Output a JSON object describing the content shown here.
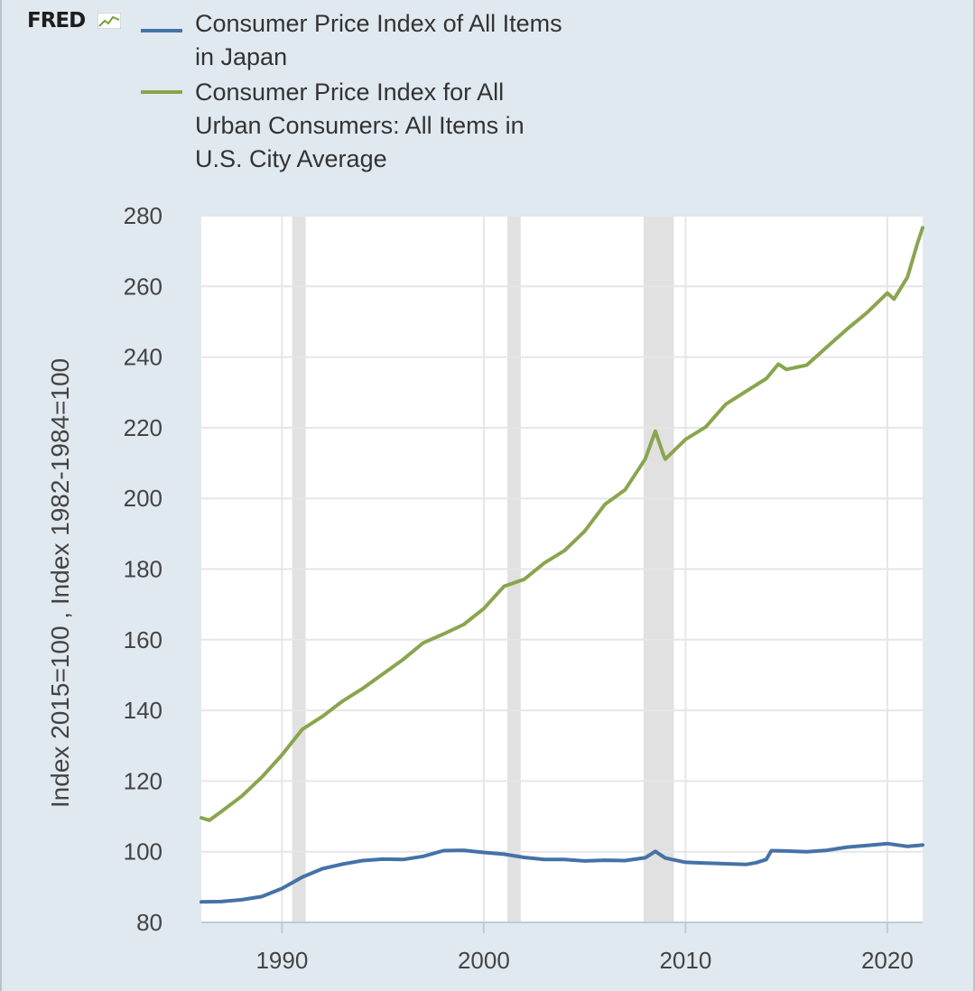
{
  "logo": {
    "text": "FRED"
  },
  "legend": [
    {
      "label": "Consumer Price Index of All Items in Japan",
      "color": "#4572a7"
    },
    {
      "label": "Consumer Price Index for All Urban Consumers: All Items in U.S. City Average",
      "color": "#89a54e"
    }
  ],
  "chart_data": {
    "type": "line",
    "ylabel": "Index 2015=100 , Index 1982-1984=100",
    "xlim": [
      1986.0,
      2021.75
    ],
    "ylim": [
      80,
      280
    ],
    "xticks": [
      1990,
      2000,
      2010,
      2020
    ],
    "yticks": [
      80,
      100,
      120,
      140,
      160,
      180,
      200,
      220,
      240,
      260,
      280
    ],
    "grid": true,
    "legend_position": "top-left",
    "recessions": [
      [
        1990.5,
        1991.17
      ],
      [
        2001.17,
        2001.83
      ],
      [
        2007.92,
        2009.42
      ]
    ],
    "series": [
      {
        "name": "Consumer Price Index of All Items in Japan",
        "color": "#4572a7",
        "points": [
          [
            1986.0,
            85.8
          ],
          [
            1987.0,
            85.9
          ],
          [
            1988.0,
            86.4
          ],
          [
            1989.0,
            87.3
          ],
          [
            1990.0,
            89.6
          ],
          [
            1991.0,
            92.8
          ],
          [
            1992.0,
            95.2
          ],
          [
            1993.0,
            96.5
          ],
          [
            1994.0,
            97.5
          ],
          [
            1995.0,
            97.9
          ],
          [
            1996.0,
            97.8
          ],
          [
            1997.0,
            98.7
          ],
          [
            1998.0,
            100.3
          ],
          [
            1999.0,
            100.4
          ],
          [
            2000.0,
            99.8
          ],
          [
            2001.0,
            99.3
          ],
          [
            2002.0,
            98.4
          ],
          [
            2003.0,
            97.8
          ],
          [
            2004.0,
            97.8
          ],
          [
            2005.0,
            97.4
          ],
          [
            2006.0,
            97.6
          ],
          [
            2007.0,
            97.5
          ],
          [
            2008.0,
            98.3
          ],
          [
            2008.5,
            100.1
          ],
          [
            2009.0,
            98.2
          ],
          [
            2010.0,
            97.0
          ],
          [
            2011.0,
            96.8
          ],
          [
            2012.0,
            96.6
          ],
          [
            2013.0,
            96.4
          ],
          [
            2013.5,
            96.9
          ],
          [
            2014.0,
            97.8
          ],
          [
            2014.25,
            100.3
          ],
          [
            2015.0,
            100.2
          ],
          [
            2016.0,
            100.0
          ],
          [
            2017.0,
            100.4
          ],
          [
            2018.0,
            101.3
          ],
          [
            2019.0,
            101.8
          ],
          [
            2020.0,
            102.3
          ],
          [
            2021.0,
            101.5
          ],
          [
            2021.75,
            101.9
          ]
        ]
      },
      {
        "name": "Consumer Price Index for All Urban Consumers: All Items in U.S. City Average",
        "color": "#89a54e",
        "points": [
          [
            1986.0,
            109.6
          ],
          [
            1986.4,
            108.9
          ],
          [
            1987.0,
            111.4
          ],
          [
            1988.0,
            115.7
          ],
          [
            1989.0,
            121.1
          ],
          [
            1990.0,
            127.4
          ],
          [
            1991.0,
            134.6
          ],
          [
            1992.0,
            138.3
          ],
          [
            1993.0,
            142.6
          ],
          [
            1994.0,
            146.2
          ],
          [
            1995.0,
            150.3
          ],
          [
            1996.0,
            154.4
          ],
          [
            1997.0,
            159.1
          ],
          [
            1998.0,
            161.6
          ],
          [
            1999.0,
            164.3
          ],
          [
            2000.0,
            168.8
          ],
          [
            2001.0,
            175.1
          ],
          [
            2002.0,
            177.1
          ],
          [
            2003.0,
            181.7
          ],
          [
            2004.0,
            185.2
          ],
          [
            2005.0,
            190.7
          ],
          [
            2006.0,
            198.3
          ],
          [
            2007.0,
            202.4
          ],
          [
            2008.0,
            211.1
          ],
          [
            2008.5,
            219.0
          ],
          [
            2008.9,
            212.4
          ],
          [
            2009.0,
            211.1
          ],
          [
            2010.0,
            216.7
          ],
          [
            2011.0,
            220.2
          ],
          [
            2012.0,
            226.7
          ],
          [
            2013.0,
            230.3
          ],
          [
            2014.0,
            233.9
          ],
          [
            2014.6,
            238.0
          ],
          [
            2015.0,
            236.5
          ],
          [
            2016.0,
            237.7
          ],
          [
            2017.0,
            242.8
          ],
          [
            2018.0,
            247.9
          ],
          [
            2019.0,
            252.6
          ],
          [
            2020.0,
            258.1
          ],
          [
            2020.33,
            256.4
          ],
          [
            2021.0,
            262.6
          ],
          [
            2021.5,
            272.3
          ],
          [
            2021.75,
            276.6
          ]
        ]
      }
    ]
  }
}
